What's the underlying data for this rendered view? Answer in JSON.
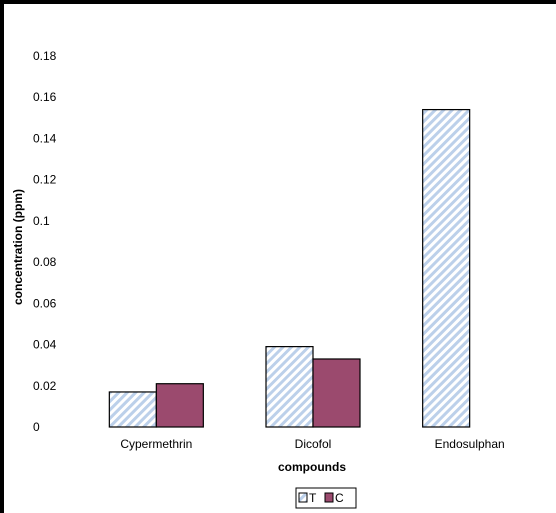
{
  "chart_data": {
    "type": "bar",
    "categories": [
      "Cypermethrin",
      "Dicofol",
      "Endosulphan"
    ],
    "series": [
      {
        "name": "T",
        "values": [
          0.017,
          0.039,
          0.154
        ],
        "color": "#bcd0ea",
        "pattern": "diagonal-hatch"
      },
      {
        "name": "C",
        "values": [
          0.021,
          0.033,
          null
        ],
        "color": "#9b4a6e",
        "pattern": "solid"
      }
    ],
    "xlabel": "compounds",
    "ylabel": "concentration (ppm)",
    "ylim": [
      0,
      0.18
    ],
    "yticks": [
      0,
      0.02,
      0.04,
      0.06,
      0.08,
      0.1,
      0.12,
      0.14,
      0.16,
      0.18
    ],
    "ytick_labels": [
      "0",
      "0.02",
      "0.04",
      "0.06",
      "0.08",
      "0.1",
      "0.12",
      "0.14",
      "0.16",
      "0.18"
    ],
    "grid": false,
    "legend_position": "bottom-center"
  }
}
